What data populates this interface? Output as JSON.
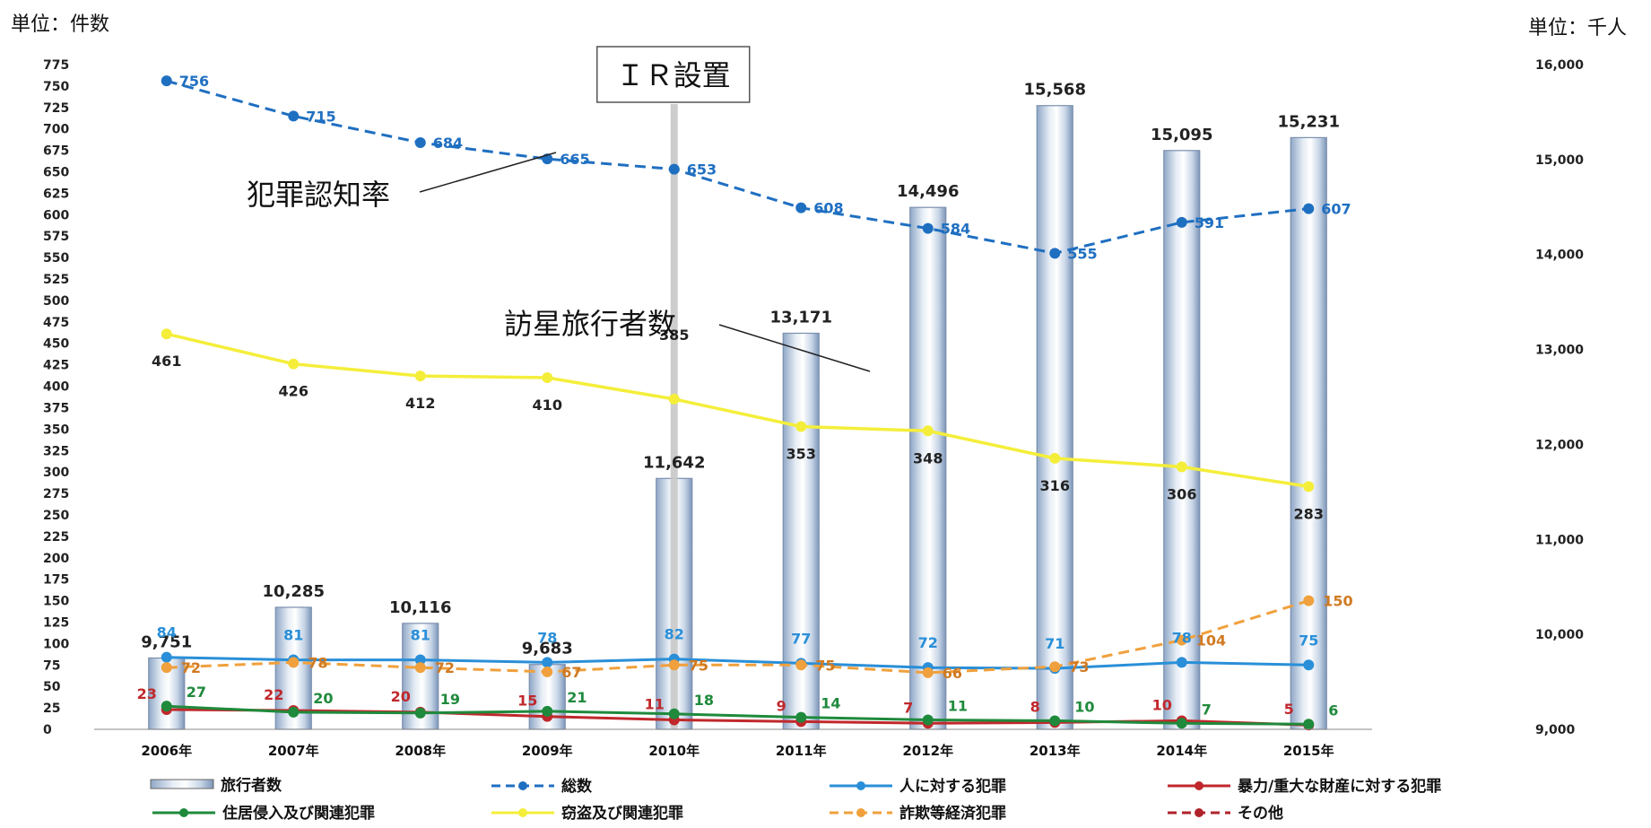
{
  "chart_data": {
    "type": "bar+line",
    "title": "",
    "left_unit": "単位：件数",
    "right_unit": "単位：千人",
    "categories": [
      "2006年",
      "2007年",
      "2008年",
      "2009年",
      "2010年",
      "2011年",
      "2012年",
      "2013年",
      "2014年",
      "2015年"
    ],
    "left_ylim": [
      0,
      775
    ],
    "left_ticks": [
      "775",
      "750",
      "725",
      "700",
      "675",
      "650",
      "625",
      "600",
      "575",
      "550",
      "525",
      "500",
      "475",
      "450",
      "425",
      "400",
      "375",
      "350",
      "325",
      "300",
      "275",
      "250",
      "225",
      "200",
      "175",
      "150",
      "125",
      "100",
      "75",
      "50",
      "25",
      "0"
    ],
    "right_ylim": [
      9000,
      16000
    ],
    "right_ticks": [
      "16,000",
      "15,000",
      "14,000",
      "13,000",
      "12,000",
      "11,000",
      "10,000",
      "9,000"
    ],
    "bars": {
      "name": "旅行者数",
      "values": [
        9751,
        10285,
        10116,
        9683,
        11642,
        13171,
        14496,
        15568,
        15095,
        15231
      ],
      "labels": [
        "9,751",
        "10,285",
        "10,116",
        "9,683",
        "11,642",
        "13,171",
        "14,496",
        "15,568",
        "15,095",
        "15,231"
      ]
    },
    "series": [
      {
        "name": "総数",
        "color": "#1f6fc1",
        "dash": true,
        "values": [
          756,
          715,
          684,
          665,
          653,
          608,
          584,
          555,
          591,
          607
        ]
      },
      {
        "name": "人に対する犯罪",
        "color": "#2a8fd8",
        "dash": false,
        "values": [
          84,
          81,
          81,
          78,
          82,
          77,
          72,
          71,
          78,
          75
        ]
      },
      {
        "name": "暴力/重大な財産に対する犯罪",
        "color": "#c0282c",
        "dash": false,
        "values": [
          23,
          22,
          20,
          15,
          11,
          9,
          7,
          8,
          10,
          5
        ]
      },
      {
        "name": "住居侵入及び関連犯罪",
        "color": "#1f8a3c",
        "dash": false,
        "values": [
          27,
          20,
          19,
          21,
          18,
          14,
          11,
          10,
          7,
          6
        ]
      },
      {
        "name": "窃盗及び関連犯罪",
        "color": "#f4ee3a",
        "dash": false,
        "values": [
          461,
          426,
          412,
          410,
          385,
          353,
          348,
          316,
          306,
          283
        ]
      },
      {
        "name": "詐欺等経済犯罪",
        "color": "#f0a03c",
        "dash": true,
        "values": [
          72,
          78,
          72,
          67,
          75,
          75,
          66,
          73,
          104,
          150
        ]
      },
      {
        "name": "その他",
        "color": "#b0222a",
        "dash": true,
        "values": [
          null,
          null,
          null,
          null,
          null,
          null,
          null,
          null,
          null,
          null
        ]
      }
    ],
    "annotations": {
      "ir": "ＩＲ設置",
      "crime_rate": "犯罪認知率",
      "visitors": "訪星旅行者数"
    },
    "legend_placement": "bottom"
  }
}
